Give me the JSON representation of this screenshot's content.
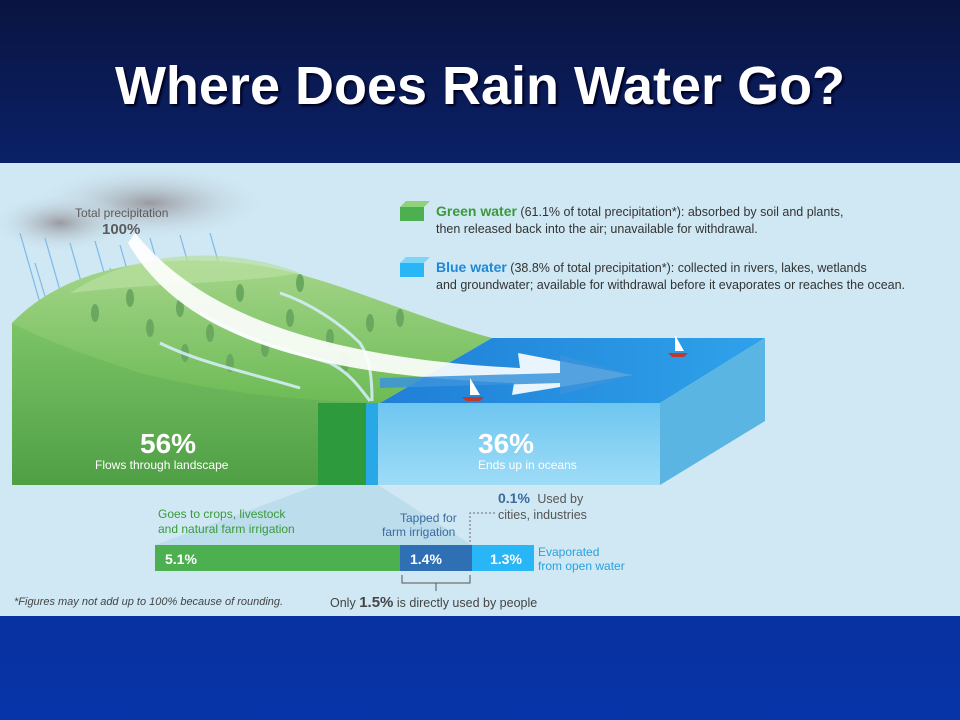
{
  "slide": {
    "title": "Where Does Rain Water Go?"
  },
  "diagram": {
    "precipitation": {
      "label": "Total precipitation",
      "value": "100%"
    },
    "legend": {
      "green": {
        "name": "Green water",
        "line1": " (61.1% of total precipitation*): absorbed by soil and plants,",
        "line2": "then released back into the air; unavailable for withdrawal.",
        "color": "#4caf50"
      },
      "blue": {
        "name": "Blue water",
        "line1": " (38.8% of total precipitation*): collected in rivers, lakes, wetlands",
        "line2": "and groundwater; available for withdrawal before it evaporates or reaches the ocean.",
        "color": "#29b6f6"
      }
    },
    "landscape": {
      "value": "56%",
      "label": "Flows through landscape"
    },
    "ocean": {
      "value": "36%",
      "label": "Ends up in oceans"
    },
    "cities": {
      "value": "0.1%",
      "label_line1": "Used by",
      "label_line2": "cities, industries"
    },
    "crops": {
      "label_line1": "Goes to crops, livestock",
      "label_line2": "and natural farm irrigation",
      "value": "5.1%"
    },
    "irrigation": {
      "label_line1": "Tapped for",
      "label_line2": "farm irrigation",
      "value": "1.4%"
    },
    "evaporated": {
      "value": "1.3%",
      "label_line1": "Evaporated",
      "label_line2": "from open water"
    },
    "footnote": "*Figures may not add up to 100% because of rounding.",
    "summary": {
      "prefix": "Only ",
      "value": "1.5%",
      "suffix": " is directly used by people"
    }
  }
}
